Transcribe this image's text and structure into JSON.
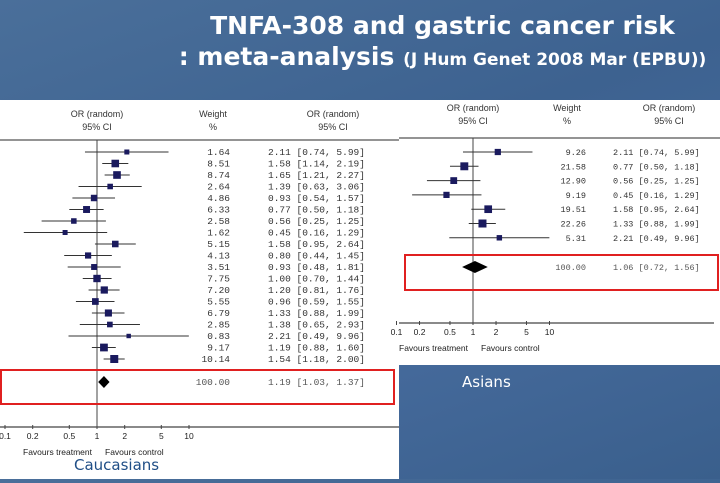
{
  "title": {
    "line1": "TNFA-308 and gastric cancer risk",
    "line2_main": ": meta-analysis",
    "line2_ref": "(J Hum Genet 2008 Mar (EPBU))"
  },
  "colors": {
    "background": "#3f6590",
    "marker": "#1a1a5e",
    "highlight_box": "#e02020",
    "caption_caucasians": "#1f4e86"
  },
  "chart_data": [
    {
      "type": "forest",
      "caption": "Caucasians",
      "headers": {
        "or_plot": [
          "OR (random)",
          "95% CI"
        ],
        "weight": [
          "Weight",
          "%"
        ],
        "or_text": [
          "OR (random)",
          "95% CI"
        ]
      },
      "x_scale": "log",
      "xlim": [
        0.1,
        10
      ],
      "ticks": [
        "0.1",
        "0.2",
        "0.5",
        "1",
        "2",
        "5",
        "10"
      ],
      "favours": [
        "Favours treatment",
        "Favours control"
      ],
      "studies": [
        {
          "weight": "1.64",
          "or": 2.11,
          "lo": 0.74,
          "hi": 5.99
        },
        {
          "weight": "8.51",
          "or": 1.58,
          "lo": 1.14,
          "hi": 2.19
        },
        {
          "weight": "8.74",
          "or": 1.65,
          "lo": 1.21,
          "hi": 2.27
        },
        {
          "weight": "2.64",
          "or": 1.39,
          "lo": 0.63,
          "hi": 3.06
        },
        {
          "weight": "4.86",
          "or": 0.93,
          "lo": 0.54,
          "hi": 1.57
        },
        {
          "weight": "6.33",
          "or": 0.77,
          "lo": 0.5,
          "hi": 1.18
        },
        {
          "weight": "2.58",
          "or": 0.56,
          "lo": 0.25,
          "hi": 1.25
        },
        {
          "weight": "1.62",
          "or": 0.45,
          "lo": 0.16,
          "hi": 1.29
        },
        {
          "weight": "5.15",
          "or": 1.58,
          "lo": 0.95,
          "hi": 2.64
        },
        {
          "weight": "4.13",
          "or": 0.8,
          "lo": 0.44,
          "hi": 1.45
        },
        {
          "weight": "3.51",
          "or": 0.93,
          "lo": 0.48,
          "hi": 1.81
        },
        {
          "weight": "7.75",
          "or": 1.0,
          "lo": 0.7,
          "hi": 1.44
        },
        {
          "weight": "7.20",
          "or": 1.2,
          "lo": 0.81,
          "hi": 1.76
        },
        {
          "weight": "5.55",
          "or": 0.96,
          "lo": 0.59,
          "hi": 1.55
        },
        {
          "weight": "6.79",
          "or": 1.33,
          "lo": 0.88,
          "hi": 1.99
        },
        {
          "weight": "2.85",
          "or": 1.38,
          "lo": 0.65,
          "hi": 2.93
        },
        {
          "weight": "0.83",
          "or": 2.21,
          "lo": 0.49,
          "hi": 9.96
        },
        {
          "weight": "9.17",
          "or": 1.19,
          "lo": 0.88,
          "hi": 1.6
        },
        {
          "weight": "10.14",
          "or": 1.54,
          "lo": 1.18,
          "hi": 2.0
        }
      ],
      "pooled": {
        "weight": "100.00",
        "or": 1.19,
        "lo": 1.03,
        "hi": 1.37
      }
    },
    {
      "type": "forest",
      "caption": "Asians",
      "headers": {
        "or_plot": [
          "OR (random)",
          "95% CI"
        ],
        "weight": [
          "Weight",
          "%"
        ],
        "or_text": [
          "OR (random)",
          "95% CI"
        ]
      },
      "x_scale": "log",
      "xlim": [
        0.1,
        10
      ],
      "ticks": [
        "0.1",
        "0.2",
        "0.5",
        "1",
        "2",
        "5",
        "10"
      ],
      "favours": [
        "Favours treatment",
        "Favours control"
      ],
      "studies": [
        {
          "weight": "9.26",
          "or": 2.11,
          "lo": 0.74,
          "hi": 5.99
        },
        {
          "weight": "21.58",
          "or": 0.77,
          "lo": 0.5,
          "hi": 1.18
        },
        {
          "weight": "12.90",
          "or": 0.56,
          "lo": 0.25,
          "hi": 1.25
        },
        {
          "weight": "9.19",
          "or": 0.45,
          "lo": 0.16,
          "hi": 1.29
        },
        {
          "weight": "19.51",
          "or": 1.58,
          "lo": 0.95,
          "hi": 2.64
        },
        {
          "weight": "22.26",
          "or": 1.33,
          "lo": 0.88,
          "hi": 1.99
        },
        {
          "weight": "5.31",
          "or": 2.21,
          "lo": 0.49,
          "hi": 9.96
        }
      ],
      "pooled": {
        "weight": "100.00",
        "or": 1.06,
        "lo": 0.72,
        "hi": 1.56
      }
    }
  ]
}
